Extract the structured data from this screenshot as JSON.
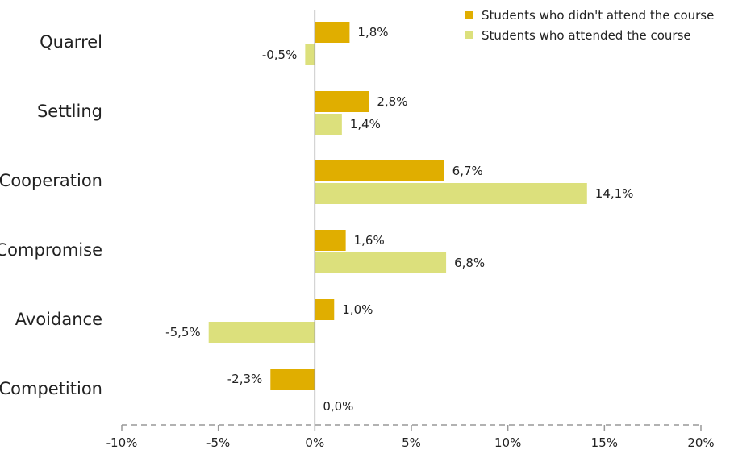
{
  "chart_data": {
    "type": "bar",
    "orientation": "horizontal",
    "categories": [
      "Quarrel",
      "Settling",
      "Cooperation",
      "Compromise",
      "Avoidance",
      "Competition"
    ],
    "series": [
      {
        "name": "Students who didn't attend the course",
        "color": "#e0ae00",
        "values": [
          1.8,
          2.8,
          6.7,
          1.6,
          1.0,
          -2.3
        ],
        "labels": [
          "1,8%",
          "2,8%",
          "6,7%",
          "1,6%",
          "1,0%",
          "-2,3%"
        ]
      },
      {
        "name": "Students who attended the course",
        "color": "#dce07c",
        "values": [
          -0.5,
          1.4,
          14.1,
          6.8,
          -5.5,
          0.0
        ],
        "labels": [
          "-0,5%",
          "1,4%",
          "14,1%",
          "6,8%",
          "-5,5%",
          "0,0%"
        ]
      }
    ],
    "xlim": [
      -10,
      20
    ],
    "xticks": [
      -10,
      -5,
      0,
      5,
      10,
      15,
      20
    ],
    "xtick_labels": [
      "-10%",
      "-5%",
      "0%",
      "5%",
      "10%",
      "15%",
      "20%"
    ],
    "legend_position": "top-right",
    "grid": false,
    "title": "",
    "xlabel": "",
    "ylabel": ""
  }
}
